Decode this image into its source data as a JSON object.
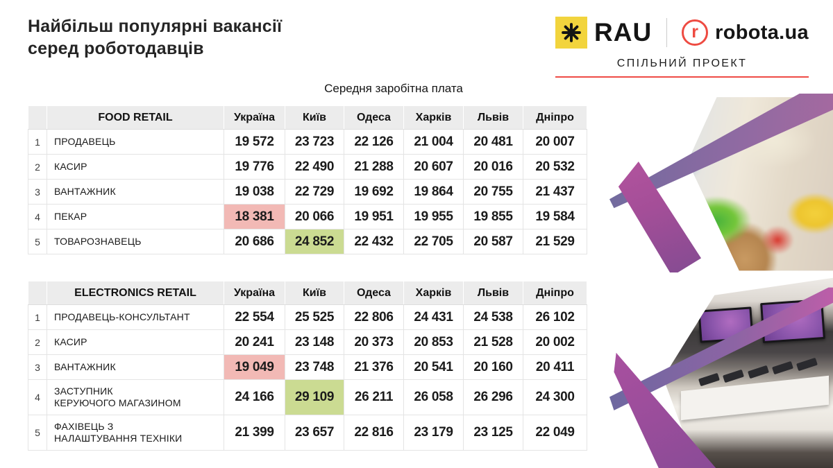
{
  "title": "Найбільш популярні вакансії\nсеред роботодавців",
  "subtitle": "Середня заробітна плата",
  "partners": {
    "rau_label": "RAU",
    "robota_initial": "r",
    "robota_label": "robota.ua",
    "project_label": "СПІЛЬНИЙ ПРОЕКТ"
  },
  "colors": {
    "accent_red": "#ef4b45",
    "logo_yellow": "#f2d43d",
    "highlight_red": "#f2b9b5",
    "highlight_green": "#cbdb92",
    "ribbon_purple": "#8d6a9f",
    "ribbon_magenta": "#b5499b"
  },
  "chart_data": [
    {
      "type": "table",
      "title": "FOOD RETAIL",
      "columns": [
        "Україна",
        "Київ",
        "Одеса",
        "Харків",
        "Львів",
        "Дніпро"
      ],
      "rows": [
        {
          "num": "1",
          "job": "ПРОДАВЕЦЬ",
          "values": [
            "19 572",
            "23 723",
            "22 126",
            "21 004",
            "20 481",
            "20 007"
          ]
        },
        {
          "num": "2",
          "job": "КАСИР",
          "values": [
            "19 776",
            "22 490",
            "21 288",
            "20 607",
            "20 016",
            "20 532"
          ]
        },
        {
          "num": "3",
          "job": "ВАНТАЖНИК",
          "values": [
            "19 038",
            "22 729",
            "19 692",
            "19 864",
            "20 755",
            "21 437"
          ]
        },
        {
          "num": "4",
          "job": "ПЕКАР",
          "values": [
            "18 381",
            "20 066",
            "19 951",
            "19 955",
            "19 855",
            "19 584"
          ],
          "hl": {
            "0": "red"
          }
        },
        {
          "num": "5",
          "job": "ТОВАРОЗНАВЕЦЬ",
          "values": [
            "20 686",
            "24 852",
            "22 432",
            "22 705",
            "20 587",
            "21 529"
          ],
          "hl": {
            "1": "green"
          }
        }
      ]
    },
    {
      "type": "table",
      "title": "ELECTRONICS RETAIL",
      "columns": [
        "Україна",
        "Київ",
        "Одеса",
        "Харків",
        "Львів",
        "Дніпро"
      ],
      "rows": [
        {
          "num": "1",
          "job": "ПРОДАВЕЦЬ-КОНСУЛЬТАНТ",
          "values": [
            "22 554",
            "25 525",
            "22 806",
            "24 431",
            "24 538",
            "26 102"
          ]
        },
        {
          "num": "2",
          "job": "КАСИР",
          "values": [
            "20 241",
            "23 148",
            "20 373",
            "20 853",
            "21 528",
            "20 002"
          ]
        },
        {
          "num": "3",
          "job": "ВАНТАЖНИК",
          "values": [
            "19 049",
            "23 748",
            "21 376",
            "20 541",
            "20 160",
            "20 411"
          ],
          "hl": {
            "0": "red"
          }
        },
        {
          "num": "4",
          "job": "ЗАСТУПНИК\nКЕРУЮЧОГО МАГАЗИНОМ",
          "values": [
            "24 166",
            "29 109",
            "26 211",
            "26 058",
            "26 296",
            "24 300"
          ],
          "hl": {
            "1": "green"
          }
        },
        {
          "num": "5",
          "job": "ФАХІВЕЦЬ З\nНАЛАШТУВАННЯ ТЕХНІКИ",
          "values": [
            "21 399",
            "23 657",
            "22 816",
            "23 179",
            "23 125",
            "22 049"
          ]
        }
      ]
    }
  ]
}
